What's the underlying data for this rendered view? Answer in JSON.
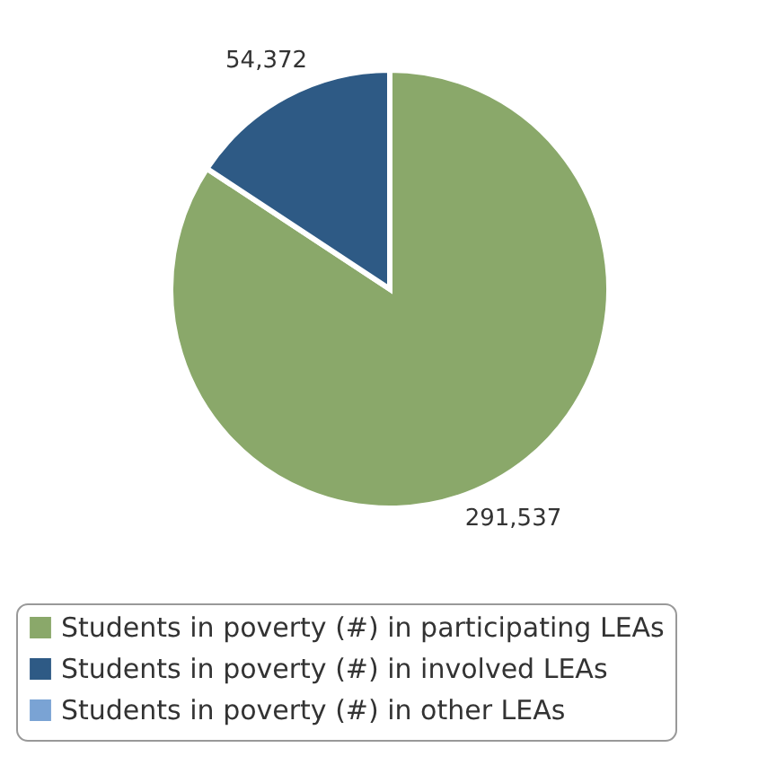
{
  "chart_data": {
    "type": "pie",
    "categories": [
      "Students in poverty (#) in participating LEAs",
      "Students in poverty (#) in involved LEAs",
      "Students in poverty (#) in other LEAs"
    ],
    "values": [
      291537,
      54372,
      0
    ],
    "value_labels": [
      "291,537",
      "54,372",
      null
    ],
    "colors": [
      "#8aa86a",
      "#2e5a85",
      "#7aa3d4"
    ],
    "legend": "bottom"
  }
}
